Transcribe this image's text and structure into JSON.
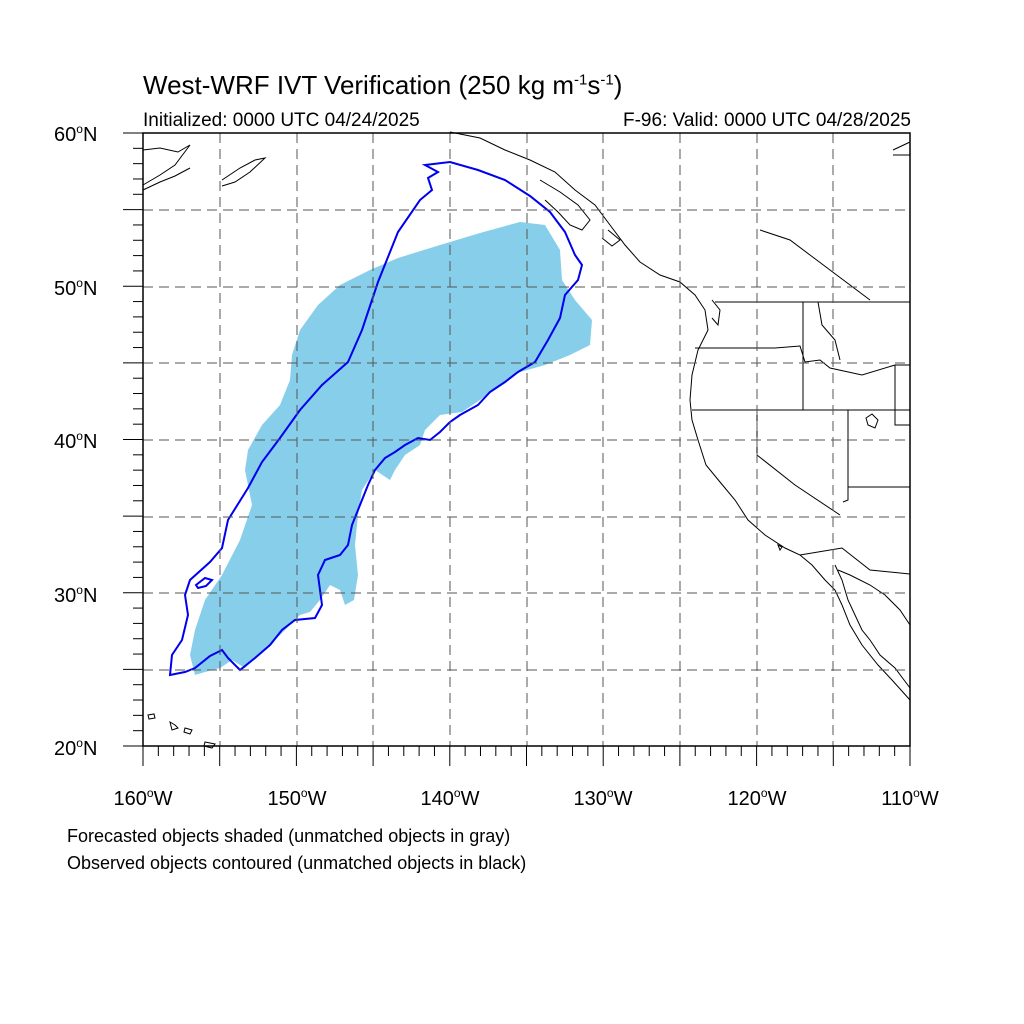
{
  "title": {
    "main": "West-WRF IVT Verification (250 kg m",
    "sup1": "-1",
    "mid": "s",
    "sup2": "-1",
    "end": ")"
  },
  "subtitle": {
    "left": "Initialized: 0000 UTC 04/24/2025",
    "right": "F-96: Valid: 0000 UTC 04/28/2025"
  },
  "axes": {
    "lat_labels": [
      {
        "value": "60",
        "suffix": "N"
      },
      {
        "value": "50",
        "suffix": "N"
      },
      {
        "value": "40",
        "suffix": "N"
      },
      {
        "value": "30",
        "suffix": "N"
      },
      {
        "value": "20",
        "suffix": "N"
      }
    ],
    "lon_labels": [
      {
        "value": "160",
        "suffix": "W"
      },
      {
        "value": "150",
        "suffix": "W"
      },
      {
        "value": "140",
        "suffix": "W"
      },
      {
        "value": "130",
        "suffix": "W"
      },
      {
        "value": "120",
        "suffix": "W"
      },
      {
        "value": "110",
        "suffix": "W"
      }
    ],
    "degree_symbol": "o",
    "lat_range": [
      20,
      60
    ],
    "lon_range": [
      -160,
      -110
    ],
    "grid": "dashed, every 5 degrees"
  },
  "legend_notes": [
    "Forecasted objects shaded (unmatched objects in gray)",
    "Observed objects contoured (unmatched objects in black)"
  ],
  "colors": {
    "forecast_fill": "#87ceeb",
    "observed_contour": "#0000ee",
    "coastline": "#000000",
    "grid": "#555555"
  }
}
